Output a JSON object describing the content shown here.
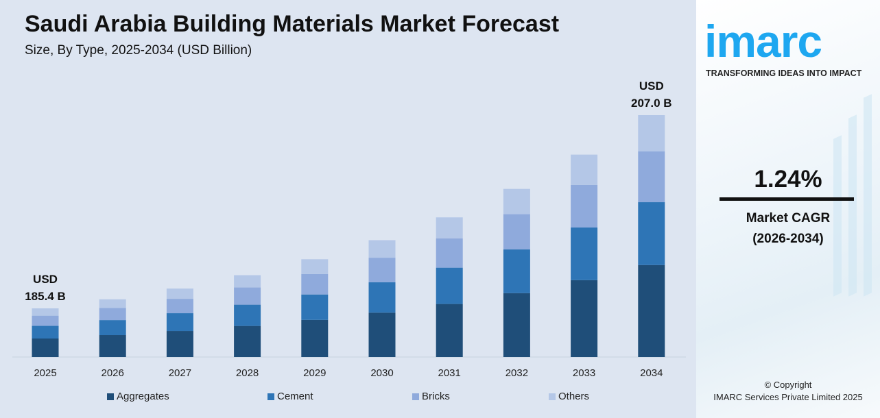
{
  "header": {
    "title": "Saudi Arabia Building Materials Market Forecast",
    "subtitle": "Size, By Type, 2025-2034 (USD Billion)"
  },
  "chart_data": {
    "type": "bar",
    "stacked": true,
    "title": "Saudi Arabia Building Materials Market Forecast",
    "subtitle": "Size, By Type, 2025-2034 (USD Billion)",
    "categories": [
      "2025",
      "2026",
      "2027",
      "2028",
      "2029",
      "2030",
      "2031",
      "2032",
      "2033",
      "2034"
    ],
    "series": [
      {
        "name": "Aggregates",
        "color": "#1f4e79",
        "values": [
          70.5,
          71.3,
          72.2,
          73.1,
          74.0,
          74.9,
          75.8,
          76.8,
          77.7,
          78.7
        ]
      },
      {
        "name": "Cement",
        "color": "#2e75b6",
        "values": [
          48.2,
          48.8,
          49.4,
          50.0,
          50.6,
          51.3,
          51.9,
          52.5,
          53.2,
          53.8
        ]
      },
      {
        "name": "Bricks",
        "color": "#8faadc",
        "values": [
          38.9,
          39.4,
          39.9,
          40.4,
          40.9,
          41.4,
          41.9,
          42.4,
          43.0,
          43.5
        ]
      },
      {
        "name": "Others",
        "color": "#b4c7e7",
        "values": [
          27.8,
          28.2,
          28.5,
          28.9,
          29.3,
          29.6,
          30.0,
          30.4,
          30.7,
          31.0
        ]
      }
    ],
    "data_labels": [
      {
        "category": "2025",
        "line1": "USD",
        "line2": "185.4 B"
      },
      {
        "category": "2034",
        "line1": "USD",
        "line2": "207.0 B"
      }
    ],
    "legend": "bottom",
    "grid": false,
    "xlabel": "",
    "ylabel": ""
  },
  "side": {
    "logo": "imarc",
    "tagline": "TRANSFORMING IDEAS INTO IMPACT",
    "cagr_value": "1.24%",
    "cagr_label": "Market CAGR",
    "cagr_period": "(2026-2034)",
    "copyright": "© Copyright",
    "company": "IMARC Services Private Limited 2025",
    "brand_color": "#1ea7f0"
  }
}
